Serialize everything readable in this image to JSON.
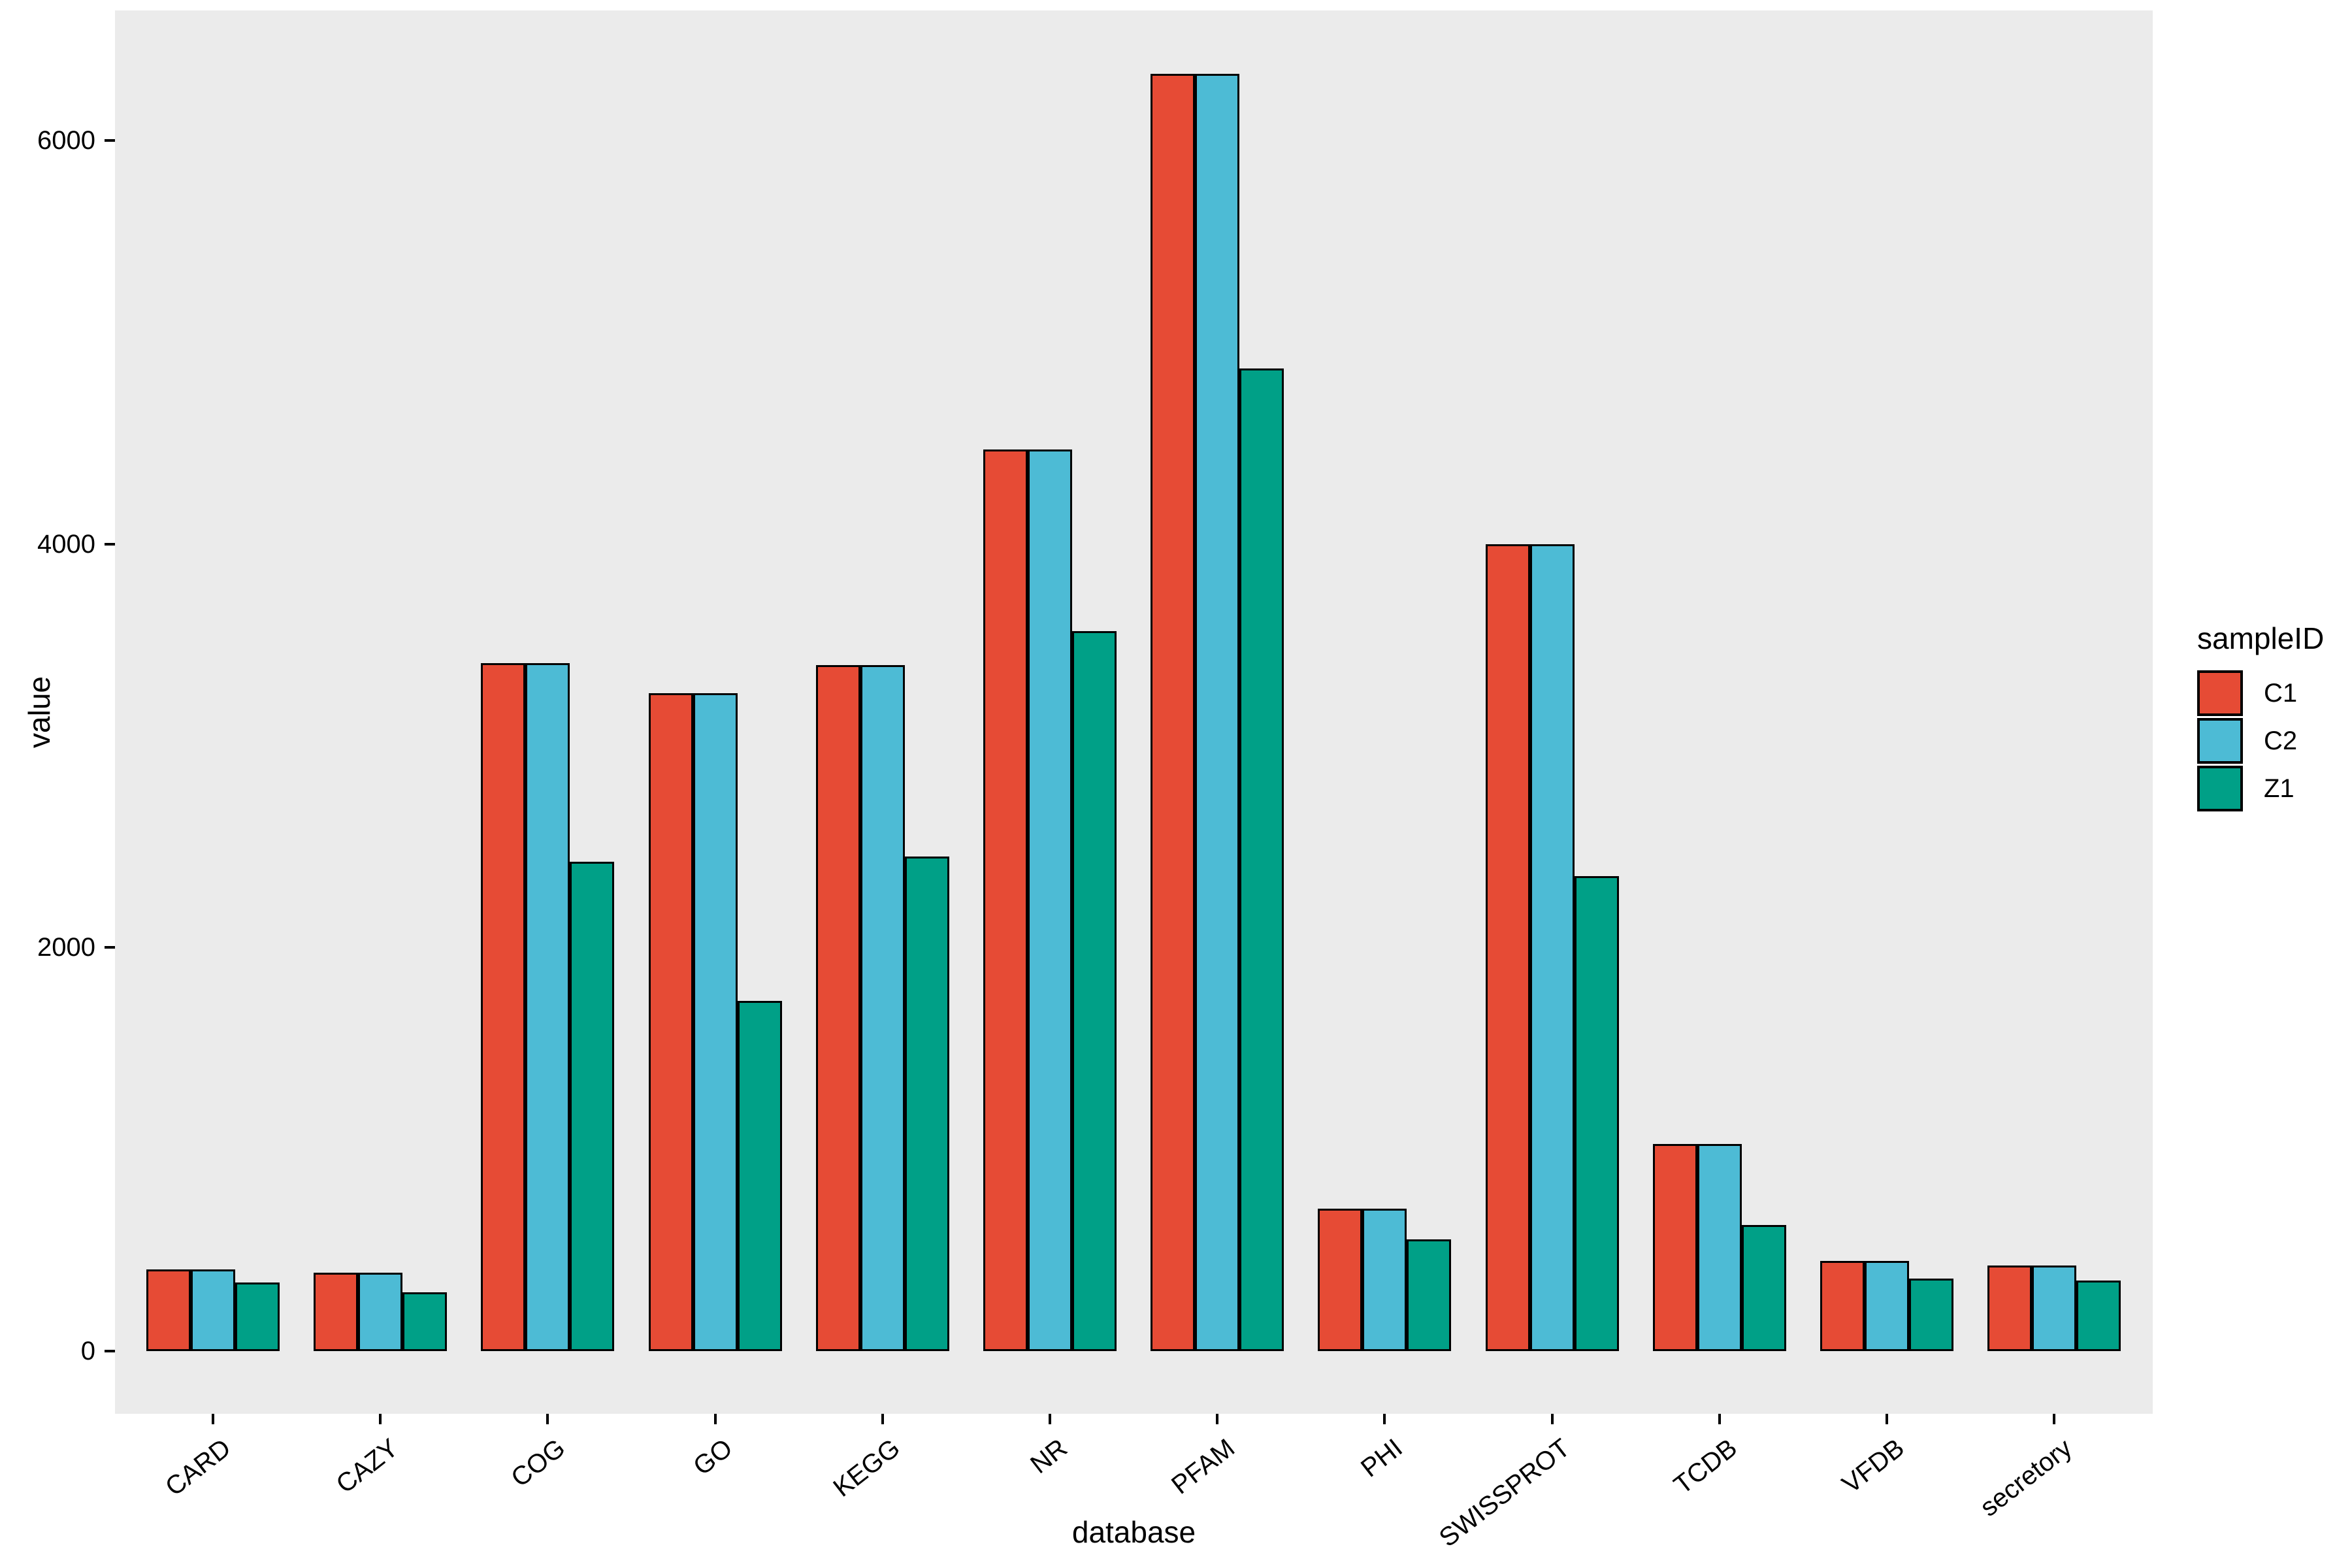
{
  "chart_data": {
    "type": "bar",
    "title": "",
    "xlabel": "database",
    "ylabel": "value",
    "legend_title": "sampleID",
    "legend_position": "right",
    "grid": false,
    "categories": [
      "CARD",
      "CAZY",
      "COG",
      "GO",
      "KEGG",
      "NR",
      "PFAM",
      "PHI",
      "SWISSPROT",
      "TCDB",
      "VFDB",
      "secretory"
    ],
    "series": [
      {
        "name": "C1",
        "color": "#E64B35",
        "values": [
          405,
          390,
          3410,
          3260,
          3400,
          4470,
          6330,
          705,
          4000,
          1025,
          447,
          424
        ]
      },
      {
        "name": "C2",
        "color": "#4DBBD5",
        "values": [
          405,
          390,
          3410,
          3260,
          3400,
          4470,
          6330,
          705,
          4000,
          1025,
          447,
          424
        ]
      },
      {
        "name": "Z1",
        "color": "#00A087",
        "values": [
          340,
          290,
          2425,
          1735,
          2450,
          3570,
          4870,
          555,
          2355,
          625,
          360,
          350
        ]
      }
    ],
    "yticks": [
      0,
      2000,
      4000,
      6000
    ],
    "ylim": [
      0,
      6646
    ],
    "style": {
      "panel_background": "#EBEBEB",
      "bar_outline": "#000000",
      "text_color": "#000000",
      "x_label_angle_deg": 38
    }
  }
}
